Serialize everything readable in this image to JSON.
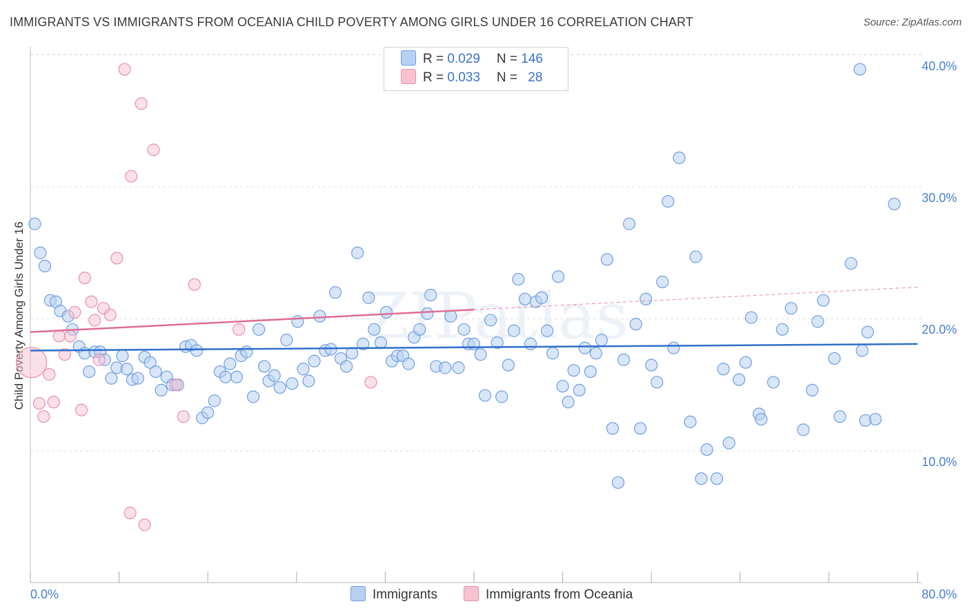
{
  "title": "IMMIGRANTS VS IMMIGRANTS FROM OCEANIA CHILD POVERTY AMONG GIRLS UNDER 16 CORRELATION CHART",
  "source": "Source: ZipAtlas.com",
  "colors": {
    "blue_fill": "#b8d1f3",
    "blue_stroke": "#6e9ee0",
    "blue_line": "#2f6fca",
    "pink_fill": "#f6c2d1",
    "pink_stroke": "#ea8fa9",
    "pink_line": "#e06c92",
    "tick_text": "#4a7fd0",
    "grid": "#dddddd"
  },
  "legend": {
    "rows": [
      {
        "r_label": "R = ",
        "r_value": "0.029",
        "n_label": "N = ",
        "n_value": "146"
      },
      {
        "r_label": "R = ",
        "r_value": "0.033",
        "n_label": "N = ",
        "n_value": "28"
      }
    ]
  },
  "bottom_legend": {
    "items": [
      "Immigrants",
      "Immigrants from Oceania"
    ]
  },
  "watermark": "ZIPatlas",
  "chart_data": {
    "type": "scatter",
    "title": "IMMIGRANTS VS IMMIGRANTS FROM OCEANIA CHILD POVERTY AMONG GIRLS UNDER 16 CORRELATION CHART",
    "ylabel": "Child Poverty Among Girls Under 16",
    "xlabel": "",
    "xlim": [
      0,
      80
    ],
    "ylim": [
      0,
      42
    ],
    "x_tick_labels": [
      "0.0%",
      "80.0%"
    ],
    "y_ticks": [
      10,
      20,
      30,
      40
    ],
    "y_tick_labels": [
      "10.0%",
      "20.0%",
      "30.0%",
      "40.0%"
    ],
    "grid": true,
    "legend_position": "top-center",
    "series": [
      {
        "name": "Immigrants",
        "r": 0.029,
        "n": 146,
        "trend": {
          "x": [
            0,
            80
          ],
          "y": [
            17.6,
            18.1
          ]
        },
        "points": [
          [
            0.4,
            27.2
          ],
          [
            0.9,
            25.0
          ],
          [
            1.3,
            24.0
          ],
          [
            1.8,
            21.4
          ],
          [
            2.3,
            21.3
          ],
          [
            2.7,
            20.6
          ],
          [
            3.4,
            20.2
          ],
          [
            3.8,
            19.2
          ],
          [
            4.4,
            17.9
          ],
          [
            4.9,
            17.4
          ],
          [
            5.3,
            16.0
          ],
          [
            5.8,
            17.5
          ],
          [
            6.3,
            17.5
          ],
          [
            6.7,
            16.9
          ],
          [
            7.3,
            15.5
          ],
          [
            7.8,
            16.3
          ],
          [
            8.3,
            17.2
          ],
          [
            8.7,
            16.2
          ],
          [
            9.2,
            15.4
          ],
          [
            9.7,
            15.5
          ],
          [
            10.3,
            17.1
          ],
          [
            10.8,
            16.7
          ],
          [
            11.3,
            16.0
          ],
          [
            11.8,
            14.6
          ],
          [
            12.3,
            15.6
          ],
          [
            12.8,
            15.0
          ],
          [
            13.3,
            15.0
          ],
          [
            14.0,
            17.9
          ],
          [
            14.5,
            18.0
          ],
          [
            15.0,
            17.6
          ],
          [
            15.5,
            12.5
          ],
          [
            16.0,
            12.9
          ],
          [
            16.6,
            13.8
          ],
          [
            17.1,
            16.0
          ],
          [
            17.6,
            15.6
          ],
          [
            18.0,
            16.6
          ],
          [
            18.6,
            15.6
          ],
          [
            19.0,
            17.2
          ],
          [
            19.5,
            17.5
          ],
          [
            20.1,
            14.1
          ],
          [
            20.6,
            19.2
          ],
          [
            21.1,
            16.4
          ],
          [
            21.5,
            15.3
          ],
          [
            22.0,
            15.7
          ],
          [
            22.5,
            14.8
          ],
          [
            23.1,
            18.4
          ],
          [
            23.6,
            15.1
          ],
          [
            24.1,
            19.8
          ],
          [
            24.6,
            16.2
          ],
          [
            25.1,
            15.3
          ],
          [
            25.6,
            16.8
          ],
          [
            26.1,
            20.2
          ],
          [
            26.6,
            17.6
          ],
          [
            27.1,
            17.7
          ],
          [
            27.5,
            22.0
          ],
          [
            28.0,
            17.0
          ],
          [
            28.5,
            16.4
          ],
          [
            29.0,
            17.4
          ],
          [
            29.5,
            25.0
          ],
          [
            30.0,
            18.1
          ],
          [
            30.5,
            21.6
          ],
          [
            31.0,
            19.2
          ],
          [
            31.6,
            18.2
          ],
          [
            32.1,
            20.5
          ],
          [
            32.6,
            16.8
          ],
          [
            33.1,
            17.2
          ],
          [
            33.6,
            17.2
          ],
          [
            34.1,
            16.6
          ],
          [
            34.6,
            18.6
          ],
          [
            35.1,
            19.2
          ],
          [
            35.8,
            20.4
          ],
          [
            36.1,
            21.8
          ],
          [
            36.6,
            16.4
          ],
          [
            37.4,
            16.3
          ],
          [
            37.9,
            20.2
          ],
          [
            38.6,
            16.3
          ],
          [
            39.1,
            19.2
          ],
          [
            39.5,
            18.1
          ],
          [
            40.0,
            18.1
          ],
          [
            40.6,
            17.3
          ],
          [
            41.0,
            14.2
          ],
          [
            41.5,
            19.9
          ],
          [
            42.1,
            18.2
          ],
          [
            42.5,
            14.1
          ],
          [
            43.1,
            16.5
          ],
          [
            43.6,
            19.1
          ],
          [
            44.0,
            23.0
          ],
          [
            44.6,
            21.5
          ],
          [
            45.1,
            18.1
          ],
          [
            45.6,
            21.3
          ],
          [
            46.1,
            21.6
          ],
          [
            46.6,
            19.1
          ],
          [
            47.1,
            17.4
          ],
          [
            47.6,
            23.2
          ],
          [
            48.0,
            14.9
          ],
          [
            48.5,
            13.7
          ],
          [
            49.0,
            16.1
          ],
          [
            49.5,
            14.6
          ],
          [
            50.0,
            17.8
          ],
          [
            50.5,
            16.0
          ],
          [
            51.0,
            17.4
          ],
          [
            51.5,
            18.4
          ],
          [
            52.0,
            24.5
          ],
          [
            52.5,
            11.7
          ],
          [
            53.0,
            7.6
          ],
          [
            53.5,
            16.9
          ],
          [
            54.0,
            27.2
          ],
          [
            54.6,
            19.6
          ],
          [
            55.0,
            11.7
          ],
          [
            55.5,
            21.5
          ],
          [
            56.0,
            16.5
          ],
          [
            56.5,
            15.2
          ],
          [
            57.0,
            22.8
          ],
          [
            57.5,
            28.9
          ],
          [
            58.0,
            17.8
          ],
          [
            58.5,
            32.2
          ],
          [
            59.5,
            12.2
          ],
          [
            60.0,
            24.7
          ],
          [
            60.5,
            7.9
          ],
          [
            61.0,
            10.1
          ],
          [
            61.9,
            7.9
          ],
          [
            62.5,
            16.2
          ],
          [
            63.0,
            10.6
          ],
          [
            63.9,
            15.4
          ],
          [
            64.5,
            16.7
          ],
          [
            65.0,
            20.1
          ],
          [
            65.7,
            12.8
          ],
          [
            65.9,
            12.4
          ],
          [
            67.0,
            15.2
          ],
          [
            67.8,
            19.2
          ],
          [
            68.6,
            20.8
          ],
          [
            69.7,
            11.6
          ],
          [
            70.5,
            14.6
          ],
          [
            71.0,
            19.8
          ],
          [
            71.5,
            21.4
          ],
          [
            72.5,
            17.0
          ],
          [
            73.0,
            12.6
          ],
          [
            74.0,
            24.2
          ],
          [
            75.0,
            17.6
          ],
          [
            74.8,
            38.9
          ],
          [
            75.5,
            19.0
          ],
          [
            75.3,
            12.3
          ],
          [
            77.9,
            28.7
          ],
          [
            76.2,
            12.4
          ]
        ]
      },
      {
        "name": "Immigrants from Oceania",
        "r": 0.033,
        "n": 28,
        "trend": {
          "x": [
            0,
            40
          ],
          "y": [
            19.0,
            20.7
          ]
        },
        "trend_dashed": {
          "x": [
            40,
            80
          ],
          "y": [
            20.7,
            22.4
          ]
        },
        "points": [
          [
            0.1,
            16.7
          ],
          [
            0.8,
            13.6
          ],
          [
            1.2,
            12.6
          ],
          [
            1.7,
            15.8
          ],
          [
            2.1,
            13.7
          ],
          [
            2.6,
            18.7
          ],
          [
            3.1,
            17.3
          ],
          [
            3.6,
            18.7
          ],
          [
            4.0,
            20.5
          ],
          [
            4.6,
            13.1
          ],
          [
            4.9,
            23.1
          ],
          [
            5.5,
            21.3
          ],
          [
            5.8,
            19.9
          ],
          [
            6.2,
            16.9
          ],
          [
            6.6,
            20.8
          ],
          [
            7.2,
            20.3
          ],
          [
            7.8,
            24.6
          ],
          [
            8.5,
            38.9
          ],
          [
            9.1,
            30.8
          ],
          [
            10.0,
            36.3
          ],
          [
            9.0,
            5.3
          ],
          [
            10.3,
            4.4
          ],
          [
            11.1,
            32.8
          ],
          [
            13.1,
            15.0
          ],
          [
            13.8,
            12.6
          ],
          [
            14.8,
            22.6
          ],
          [
            18.8,
            19.2
          ],
          [
            30.7,
            15.2
          ]
        ]
      }
    ]
  }
}
